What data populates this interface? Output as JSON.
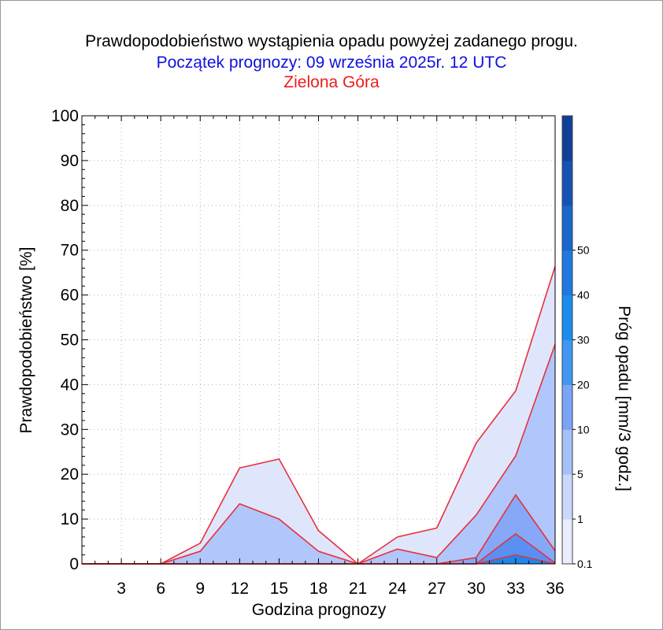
{
  "chart_data": {
    "type": "area",
    "title": "Prawdopodobieństwo wystąpienia opadu powyżej zadanego progu.",
    "subtitle": "Początek prognozy: 09 września 2025r. 12 UTC",
    "location": "Zielona Góra",
    "xlabel": "Godzina prognozy",
    "ylabel": "Prawdopodobieństwo [%]",
    "colorbar_label": "Próg opadu [mm/3 godz.]",
    "xlim": [
      0,
      36
    ],
    "ylim": [
      0,
      100
    ],
    "x_ticks": [
      3,
      6,
      9,
      12,
      15,
      18,
      21,
      24,
      27,
      30,
      33,
      36
    ],
    "y_ticks": [
      0,
      10,
      20,
      30,
      40,
      50,
      60,
      70,
      80,
      90,
      100
    ],
    "x": [
      0,
      3,
      6,
      9,
      12,
      15,
      18,
      21,
      24,
      27,
      30,
      33,
      36
    ],
    "series": [
      {
        "name": "0.1",
        "color": "#dfe6fc",
        "values": [
          0,
          0,
          0,
          4.6,
          21.4,
          23.4,
          7.4,
          0,
          6.0,
          8.0,
          27.0,
          38.6,
          66.4
        ]
      },
      {
        "name": "1",
        "color": "#b1c6fb",
        "values": [
          0,
          0,
          0,
          2.8,
          13.4,
          10.0,
          2.8,
          0,
          3.3,
          1.4,
          10.9,
          24.1,
          49.0
        ]
      },
      {
        "name": "5",
        "color": "#86a8f7",
        "values": [
          0,
          0,
          0,
          0,
          0,
          0,
          0,
          0,
          0,
          0,
          1.4,
          15.4,
          2.9
        ]
      },
      {
        "name": "10",
        "color": "#5a90f2",
        "values": [
          0,
          0,
          0,
          0,
          0,
          0,
          0,
          0,
          0,
          0,
          0,
          6.7,
          0.2
        ]
      },
      {
        "name": "20",
        "color": "#1f86ec",
        "values": [
          0,
          0,
          0,
          0,
          0,
          0,
          0,
          0,
          0,
          0,
          0,
          2.0,
          0
        ]
      }
    ],
    "colorbar": {
      "levels": [
        0.1,
        1,
        5,
        10,
        20,
        30,
        40,
        50
      ],
      "bands": [
        "#e9edfd",
        "#c9d8fc",
        "#a6c0fa",
        "#7aa5f6",
        "#3f97f1",
        "#1a8cee",
        "#1e78e0",
        "#1966cc",
        "#1552b4",
        "#103f98"
      ]
    },
    "grid": true,
    "legend": "colorbar-right"
  }
}
